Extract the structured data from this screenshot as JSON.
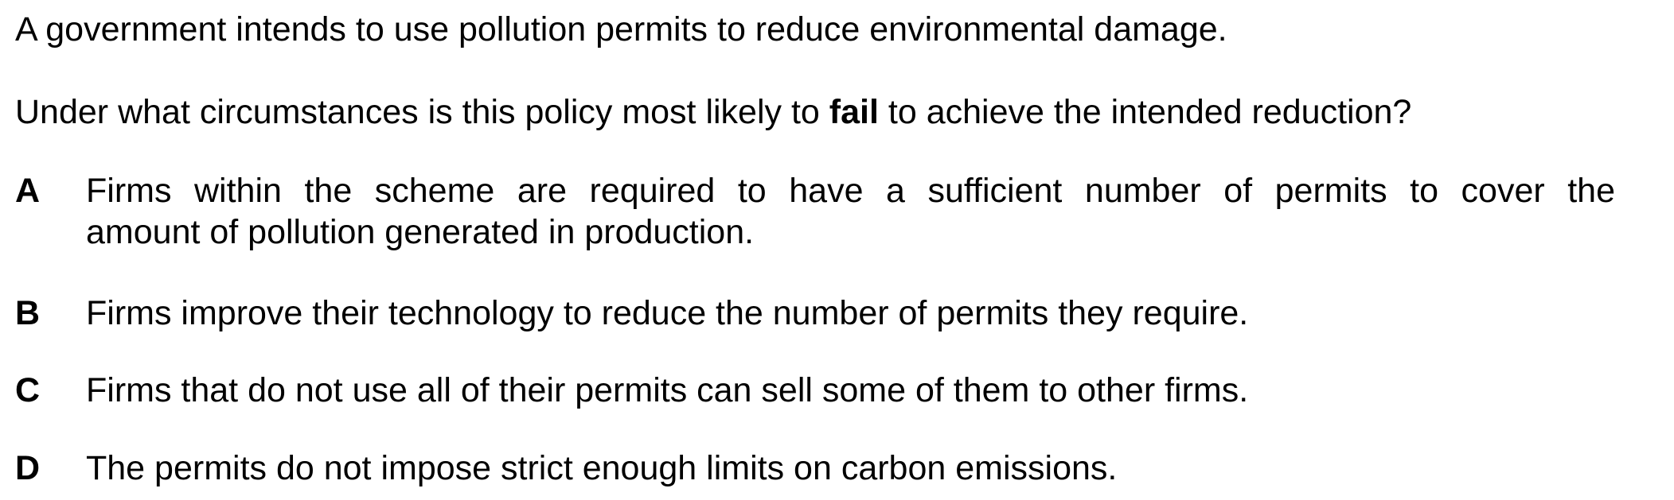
{
  "question": {
    "stem_line1": "A government intends to use pollution permits to reduce environmental damage.",
    "stem_line2_before": "Under what circumstances is this policy most likely to ",
    "stem_line2_emphasis": "fail",
    "stem_line2_after": " to achieve the intended reduction?"
  },
  "options": [
    {
      "letter": "A",
      "text_line1": "Firms within the scheme are required to have a sufficient number of permits to cover the",
      "text_line2": "amount of pollution generated in production."
    },
    {
      "letter": "B",
      "text": "Firms improve their technology to reduce the number of permits they require."
    },
    {
      "letter": "C",
      "text": "Firms that do not use all of their permits can sell some of them to other firms."
    },
    {
      "letter": "D",
      "text": "The permits do not impose strict enough limits on carbon emissions."
    }
  ]
}
